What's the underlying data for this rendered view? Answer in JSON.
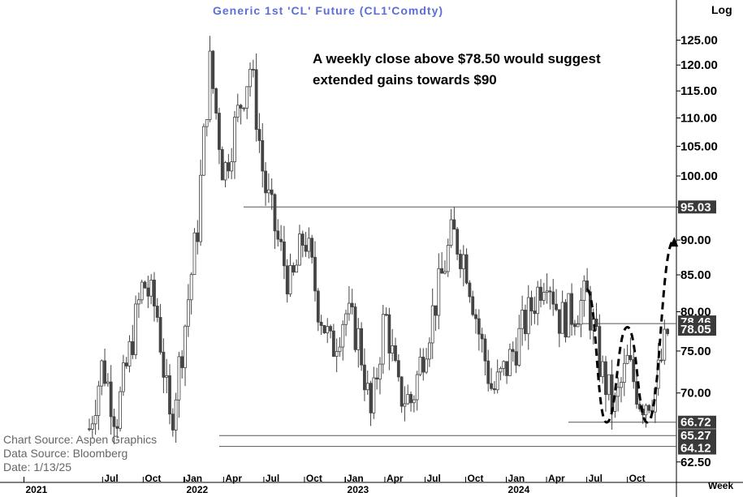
{
  "chart_data": {
    "type": "candlestick",
    "title": "Generic  1st  'CL'  Future  (CL1'Comdty)",
    "scale_label": "Log",
    "period_label": "Week",
    "annotation": "A weekly close above $78.50 would suggest extended gains towards $90",
    "sources": [
      "Chart  Source:  Aspen  Graphics",
      "Data  Source:  Bloomberg",
      "Date:     1/13/25"
    ],
    "y_scale": "log",
    "ylim": [
      61,
      133
    ],
    "y_ticks": [
      "62.50",
      "70.00",
      "75.00",
      "80.00",
      "85.00",
      "90.00",
      "95.00",
      "100.00",
      "105.00",
      "110.00",
      "115.00",
      "120.00",
      "125.00"
    ],
    "highlighted_levels": [
      "95.03",
      "78.46",
      "78.05",
      "66.72",
      "65.27",
      "64.12"
    ],
    "x_labels": [
      "2021",
      "Jul",
      "Oct",
      "Jan",
      "2022",
      "Apr",
      "Jul",
      "Oct",
      "Jan",
      "2023",
      "Apr",
      "Jul",
      "Oct",
      "Jan",
      "2024",
      "Apr",
      "Jul",
      "Oct"
    ],
    "horizontal_lines": [
      95.03,
      78.46,
      66.72,
      65.27,
      64.12
    ],
    "price_path": [
      [
        "2021-06-01",
        66.0
      ],
      [
        "2021-07-01",
        73.5
      ],
      [
        "2021-08-01",
        67.0
      ],
      [
        "2021-09-01",
        75.0
      ],
      [
        "2021-10-01",
        84.0
      ],
      [
        "2021-11-01",
        80.0
      ],
      [
        "2021-12-01",
        66.0
      ],
      [
        "2022-01-01",
        77.0
      ],
      [
        "2022-02-01",
        92.0
      ],
      [
        "2022-03-01",
        120.0
      ],
      [
        "2022-04-01",
        100.0
      ],
      [
        "2022-05-01",
        110.0
      ],
      [
        "2022-06-01",
        120.0
      ],
      [
        "2022-07-01",
        99.0
      ],
      [
        "2022-08-01",
        90.0
      ],
      [
        "2022-09-01",
        83.0
      ],
      [
        "2022-10-01",
        91.0
      ],
      [
        "2022-11-01",
        81.0
      ],
      [
        "2022-12-01",
        75.0
      ],
      [
        "2023-01-01",
        80.0
      ],
      [
        "2023-02-01",
        76.5
      ],
      [
        "2023-03-01",
        67.0
      ],
      [
        "2023-04-01",
        80.0
      ],
      [
        "2023-05-01",
        70.0
      ],
      [
        "2023-06-01",
        69.0
      ],
      [
        "2023-07-01",
        76.0
      ],
      [
        "2023-08-01",
        83.0
      ],
      [
        "2023-09-01",
        91.0
      ],
      [
        "2023-10-01",
        87.0
      ],
      [
        "2023-11-01",
        77.0
      ],
      [
        "2023-12-01",
        70.0
      ],
      [
        "2024-01-01",
        73.0
      ],
      [
        "2024-02-01",
        77.0
      ],
      [
        "2024-03-01",
        81.0
      ],
      [
        "2024-04-01",
        86.0
      ],
      [
        "2024-05-01",
        79.0
      ],
      [
        "2024-06-01",
        80.0
      ],
      [
        "2024-07-01",
        82.0
      ],
      [
        "2024-08-01",
        73.0
      ],
      [
        "2024-09-01",
        68.0
      ],
      [
        "2024-10-01",
        73.5
      ],
      [
        "2024-11-01",
        69.0
      ],
      [
        "2024-12-01",
        70.0
      ],
      [
        "2025-01-01",
        77.5
      ]
    ],
    "projection": [
      [
        "2024-07-01",
        83.0
      ],
      [
        "2024-08-15",
        66.7
      ],
      [
        "2024-10-01",
        78.0
      ],
      [
        "2024-11-15",
        66.7
      ],
      [
        "2025-01-15",
        90.0
      ]
    ]
  }
}
